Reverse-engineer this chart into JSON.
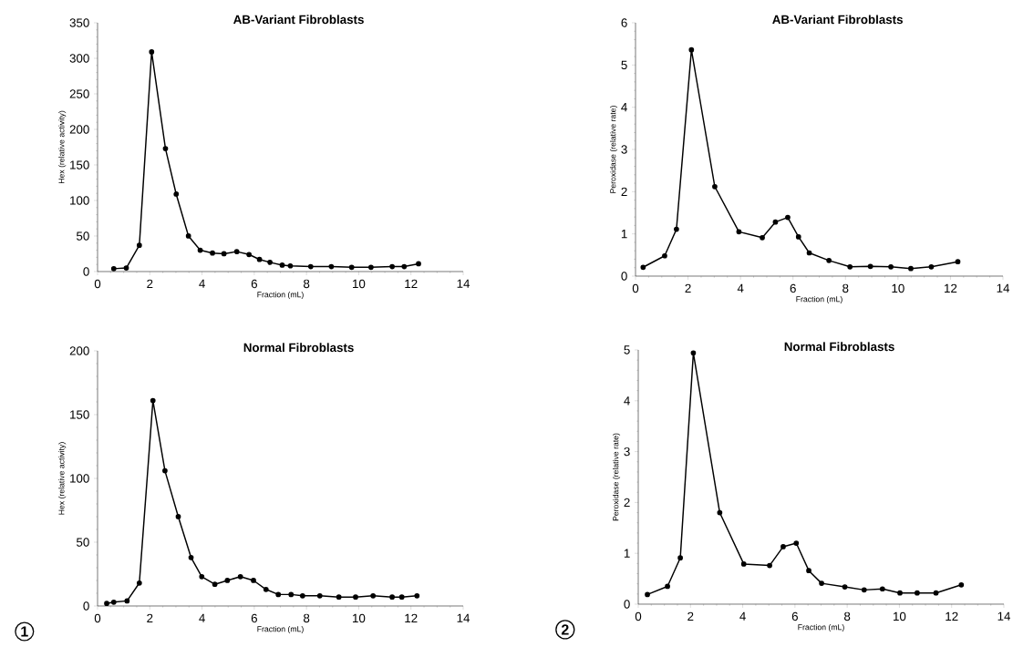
{
  "chart_data": [
    {
      "type": "line",
      "title": "AB-Variant  Fibroblasts",
      "xlabel": "Fraction (mL)",
      "ylabel": "Hex (relative activity)",
      "color": "#000000",
      "marker": "circle",
      "line_style": "solid",
      "grid": false,
      "x": [
        0.62,
        1.1,
        1.6,
        2.07,
        2.6,
        3.01,
        3.48,
        3.93,
        4.4,
        4.84,
        5.33,
        5.8,
        6.2,
        6.6,
        7.07,
        7.38,
        8.16,
        8.95,
        9.73,
        10.47,
        11.28,
        11.74,
        12.29
      ],
      "values": [
        4,
        5,
        37,
        309,
        173,
        109,
        50,
        30,
        26,
        25,
        28,
        24,
        17,
        13,
        9,
        8,
        7,
        7,
        6,
        6,
        7,
        7,
        11
      ],
      "xlim": [
        0,
        14
      ],
      "xticks": [
        0,
        2,
        4,
        6,
        8,
        10,
        12,
        14
      ],
      "ylim": [
        0,
        350
      ],
      "yticks": [
        0,
        50,
        100,
        150,
        200,
        250,
        300,
        350
      ]
    },
    {
      "type": "line",
      "title": "AB-Variant  Fibroblasts",
      "xlabel": "Fraction (mL)",
      "ylabel": "Peroxidase (relative rate)",
      "color": "#000000",
      "marker": "circle",
      "line_style": "solid",
      "grid": false,
      "x": [
        0.29,
        1.11,
        1.56,
        2.13,
        3.02,
        3.94,
        4.83,
        5.33,
        5.8,
        6.21,
        6.62,
        7.37,
        8.17,
        8.95,
        9.73,
        10.49,
        11.27,
        12.28
      ],
      "values": [
        0.21,
        0.48,
        1.11,
        5.36,
        2.12,
        1.05,
        0.91,
        1.28,
        1.39,
        0.93,
        0.55,
        0.37,
        0.22,
        0.23,
        0.22,
        0.18,
        0.22,
        0.34
      ],
      "xlim": [
        0,
        14
      ],
      "xticks": [
        0,
        2,
        4,
        6,
        8,
        10,
        12,
        14
      ],
      "ylim": [
        0,
        6
      ],
      "yticks": [
        0,
        1,
        2,
        3,
        4,
        5,
        6
      ]
    },
    {
      "type": "line",
      "title": "Normal  Fibroblasts",
      "xlabel": "Fraction (mL)",
      "ylabel": "Hex (relative activity)",
      "color": "#000000",
      "marker": "circle",
      "line_style": "solid",
      "grid": false,
      "annotations": [
        "1"
      ],
      "x": [
        0.35,
        0.62,
        1.13,
        1.6,
        2.12,
        2.58,
        3.09,
        3.58,
        3.99,
        4.49,
        4.97,
        5.47,
        5.97,
        6.45,
        6.92,
        7.41,
        7.85,
        8.51,
        9.24,
        9.88,
        10.55,
        11.28,
        11.65,
        12.23
      ],
      "values": [
        2,
        3,
        4,
        18,
        161,
        106,
        70,
        38,
        23,
        17,
        20,
        23,
        20,
        13,
        9,
        9,
        8,
        8,
        7,
        7,
        8,
        7,
        7,
        8
      ],
      "xlim": [
        0,
        14
      ],
      "xticks": [
        0,
        2,
        4,
        6,
        8,
        10,
        12,
        14
      ],
      "ylim": [
        0,
        200
      ],
      "yticks": [
        0,
        50,
        100,
        150,
        200
      ]
    },
    {
      "type": "line",
      "title": "Normal  Fibroblasts",
      "xlabel": "Fraction (mL)",
      "ylabel": "Peroxidase (relative rate)",
      "color": "#000000",
      "marker": "circle",
      "line_style": "solid",
      "grid": false,
      "annotations": [
        "2"
      ],
      "x": [
        0.35,
        1.12,
        1.61,
        2.11,
        3.12,
        4.04,
        5.03,
        5.55,
        6.05,
        6.53,
        7.02,
        7.91,
        8.65,
        9.35,
        10.02,
        10.68,
        11.4,
        12.37
      ],
      "values": [
        0.19,
        0.35,
        0.91,
        4.94,
        1.8,
        0.79,
        0.76,
        1.13,
        1.2,
        0.66,
        0.41,
        0.34,
        0.28,
        0.3,
        0.22,
        0.22,
        0.22,
        0.38
      ],
      "xlim": [
        0,
        14
      ],
      "xticks": [
        0,
        2,
        4,
        6,
        8,
        10,
        12,
        14
      ],
      "ylim": [
        0,
        5
      ],
      "yticks": [
        0,
        1,
        2,
        3,
        4,
        5
      ]
    }
  ]
}
